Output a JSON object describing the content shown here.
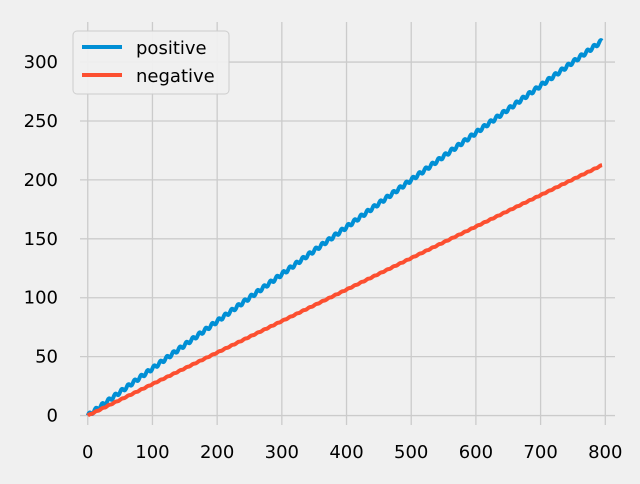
{
  "chart_data": {
    "type": "line",
    "title": "",
    "xlabel": "",
    "ylabel": "",
    "xlim": [
      -12,
      815
    ],
    "ylim": [
      -8,
      334
    ],
    "xticks": [
      0,
      100,
      200,
      300,
      400,
      500,
      600,
      700,
      800
    ],
    "yticks": [
      0,
      50,
      100,
      150,
      200,
      250,
      300
    ],
    "grid": true,
    "legend": "top-left",
    "colors": {
      "background": "#f0f0f0",
      "grid": "#cbcbcb",
      "text": "#000000"
    },
    "series": [
      {
        "name": "positive",
        "color": "#008fd5",
        "x": [
          0,
          100,
          200,
          300,
          400,
          500,
          600,
          700,
          795
        ],
        "y": [
          0,
          40,
          80,
          120,
          160,
          200,
          240,
          280,
          318
        ],
        "wave_amplitude": 1.5,
        "wave_period": 10
      },
      {
        "name": "negative",
        "color": "#fc4f30",
        "x": [
          0,
          100,
          200,
          300,
          400,
          500,
          600,
          700,
          795
        ],
        "y": [
          0,
          26.7,
          53.3,
          80,
          106.7,
          133.3,
          160,
          186.7,
          212.5
        ],
        "wave_amplitude": 0.3,
        "wave_period": 10
      }
    ]
  }
}
